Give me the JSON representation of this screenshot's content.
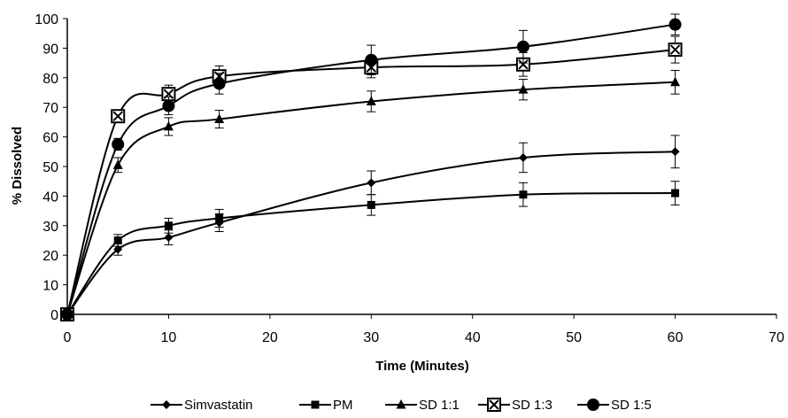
{
  "chart_data": {
    "type": "line",
    "title": "",
    "xlabel": "Time (Minutes)",
    "ylabel": "% Dissolved",
    "xlim": [
      0,
      70
    ],
    "ylim": [
      0,
      100
    ],
    "xticks": [
      0,
      10,
      20,
      30,
      40,
      50,
      60,
      70
    ],
    "yticks": [
      0,
      10,
      20,
      30,
      40,
      50,
      60,
      70,
      80,
      90,
      100
    ],
    "grid": false,
    "smooth": true,
    "legend_position": "bottom",
    "line_color": "#000000",
    "x": [
      0,
      5,
      10,
      15,
      30,
      45,
      60
    ],
    "series": [
      {
        "name": "Simvastatin",
        "marker": "diamond",
        "values": [
          0,
          22,
          26,
          31,
          44.5,
          53,
          55
        ],
        "error": [
          0,
          2,
          2.5,
          3,
          4,
          5,
          5.5
        ]
      },
      {
        "name": "PM",
        "marker": "square",
        "values": [
          0,
          25,
          30,
          32.5,
          37,
          40.5,
          41
        ],
        "error": [
          0,
          2,
          2.5,
          3,
          3.5,
          4,
          4
        ]
      },
      {
        "name": "SD 1:1",
        "marker": "triangle",
        "values": [
          0,
          50.5,
          63.5,
          66,
          72,
          76,
          78.5
        ],
        "error": [
          0,
          2.5,
          3,
          3,
          3.5,
          3.5,
          4
        ]
      },
      {
        "name": "SD 1:3",
        "marker": "boxed-x",
        "values": [
          0,
          67,
          74.5,
          80.5,
          83.5,
          84.5,
          89.5
        ],
        "error": [
          0,
          2,
          3,
          3.5,
          3.5,
          4,
          4.5
        ]
      },
      {
        "name": "SD 1:5",
        "marker": "circle",
        "values": [
          0,
          57.5,
          70.5,
          78,
          86,
          90.5,
          98
        ],
        "error": [
          0,
          2,
          3,
          3.5,
          5,
          5.5,
          3.5
        ]
      }
    ]
  }
}
